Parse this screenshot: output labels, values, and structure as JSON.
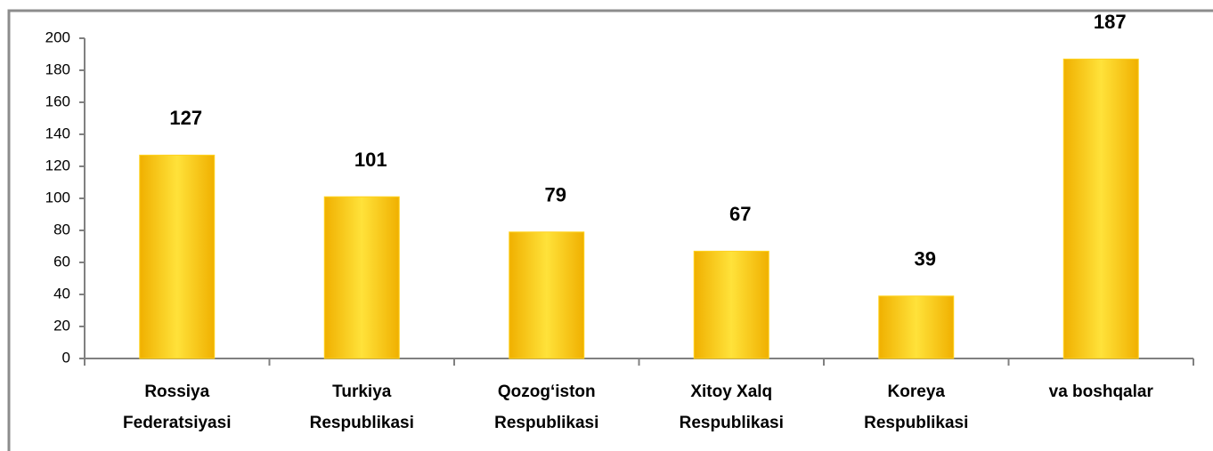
{
  "chart_data": {
    "type": "bar",
    "categories": [
      [
        "Rossiya",
        "Federatsiyasi"
      ],
      [
        "Turkiya",
        "Respublikasi"
      ],
      [
        "Qozog‘iston",
        "Respublikasi"
      ],
      [
        "Xitoy Xalq",
        "Respublikasi"
      ],
      [
        "Koreya",
        "Respublikasi"
      ],
      [
        "va boshqalar"
      ]
    ],
    "values": [
      127,
      101,
      79,
      67,
      39,
      187
    ],
    "color": "#ffd21e",
    "ylim": [
      0,
      200
    ],
    "yticks": [
      0,
      20,
      40,
      60,
      80,
      100,
      120,
      140,
      160,
      180,
      200
    ],
    "grid": false
  }
}
